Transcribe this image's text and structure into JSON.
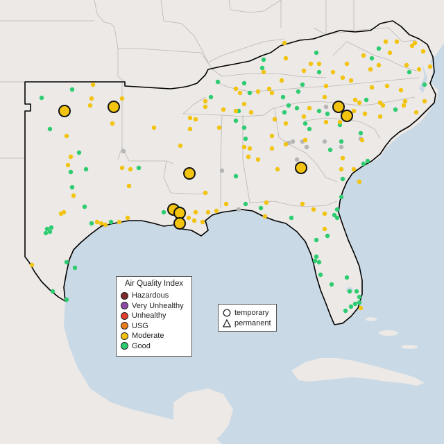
{
  "colors": {
    "water": "#c9d9e6",
    "land": "#ece9e6",
    "border": "#b9b6b3",
    "highlight": "#000000",
    "grey_station": "#b5b5b5"
  },
  "aqi_legend": {
    "title": "Air Quality Index",
    "items": [
      {
        "label": "Hazardous",
        "color": "#7e2b2b"
      },
      {
        "label": "Very Unhealthy",
        "color": "#8e4aa8"
      },
      {
        "label": "Unhealthy",
        "color": "#e2402e"
      },
      {
        "label": "USG",
        "color": "#ea7d1e"
      },
      {
        "label": "Moderate",
        "color": "#f2c30f"
      },
      {
        "label": "Good",
        "color": "#2ecc71"
      }
    ]
  },
  "type_legend": {
    "items": [
      {
        "label": "temporary",
        "shape": "circle-icon"
      },
      {
        "label": "permanent",
        "shape": "triangle-icon"
      }
    ]
  }
}
